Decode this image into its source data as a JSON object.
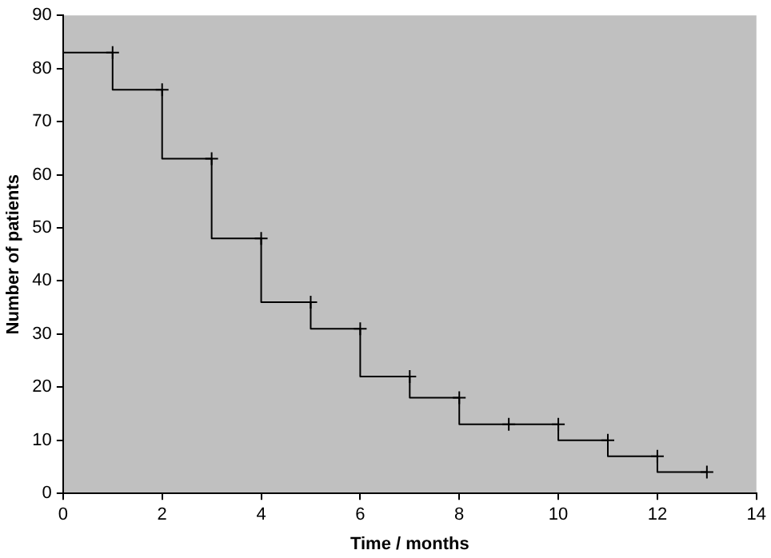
{
  "chart_data": {
    "type": "step",
    "xlabel": "Time / months",
    "ylabel": "Number of patients",
    "series": [
      {
        "color": "#000000",
        "x": [
          0,
          1,
          2,
          3,
          4,
          5,
          6,
          7,
          8,
          9,
          10,
          11,
          12,
          13
        ],
        "values": [
          83,
          83,
          76,
          63,
          48,
          36,
          31,
          22,
          18,
          13,
          13,
          10,
          7,
          4
        ]
      }
    ],
    "xlim": [
      0,
      14
    ],
    "xticks": [
      0,
      2,
      4,
      6,
      8,
      10,
      12,
      14
    ],
    "ylim": [
      0,
      90
    ],
    "yticks": [
      0,
      10,
      20,
      30,
      40,
      50,
      60,
      70,
      80,
      90
    ],
    "grid": false,
    "legend": false,
    "marker": "cross",
    "line_style": "solid"
  }
}
